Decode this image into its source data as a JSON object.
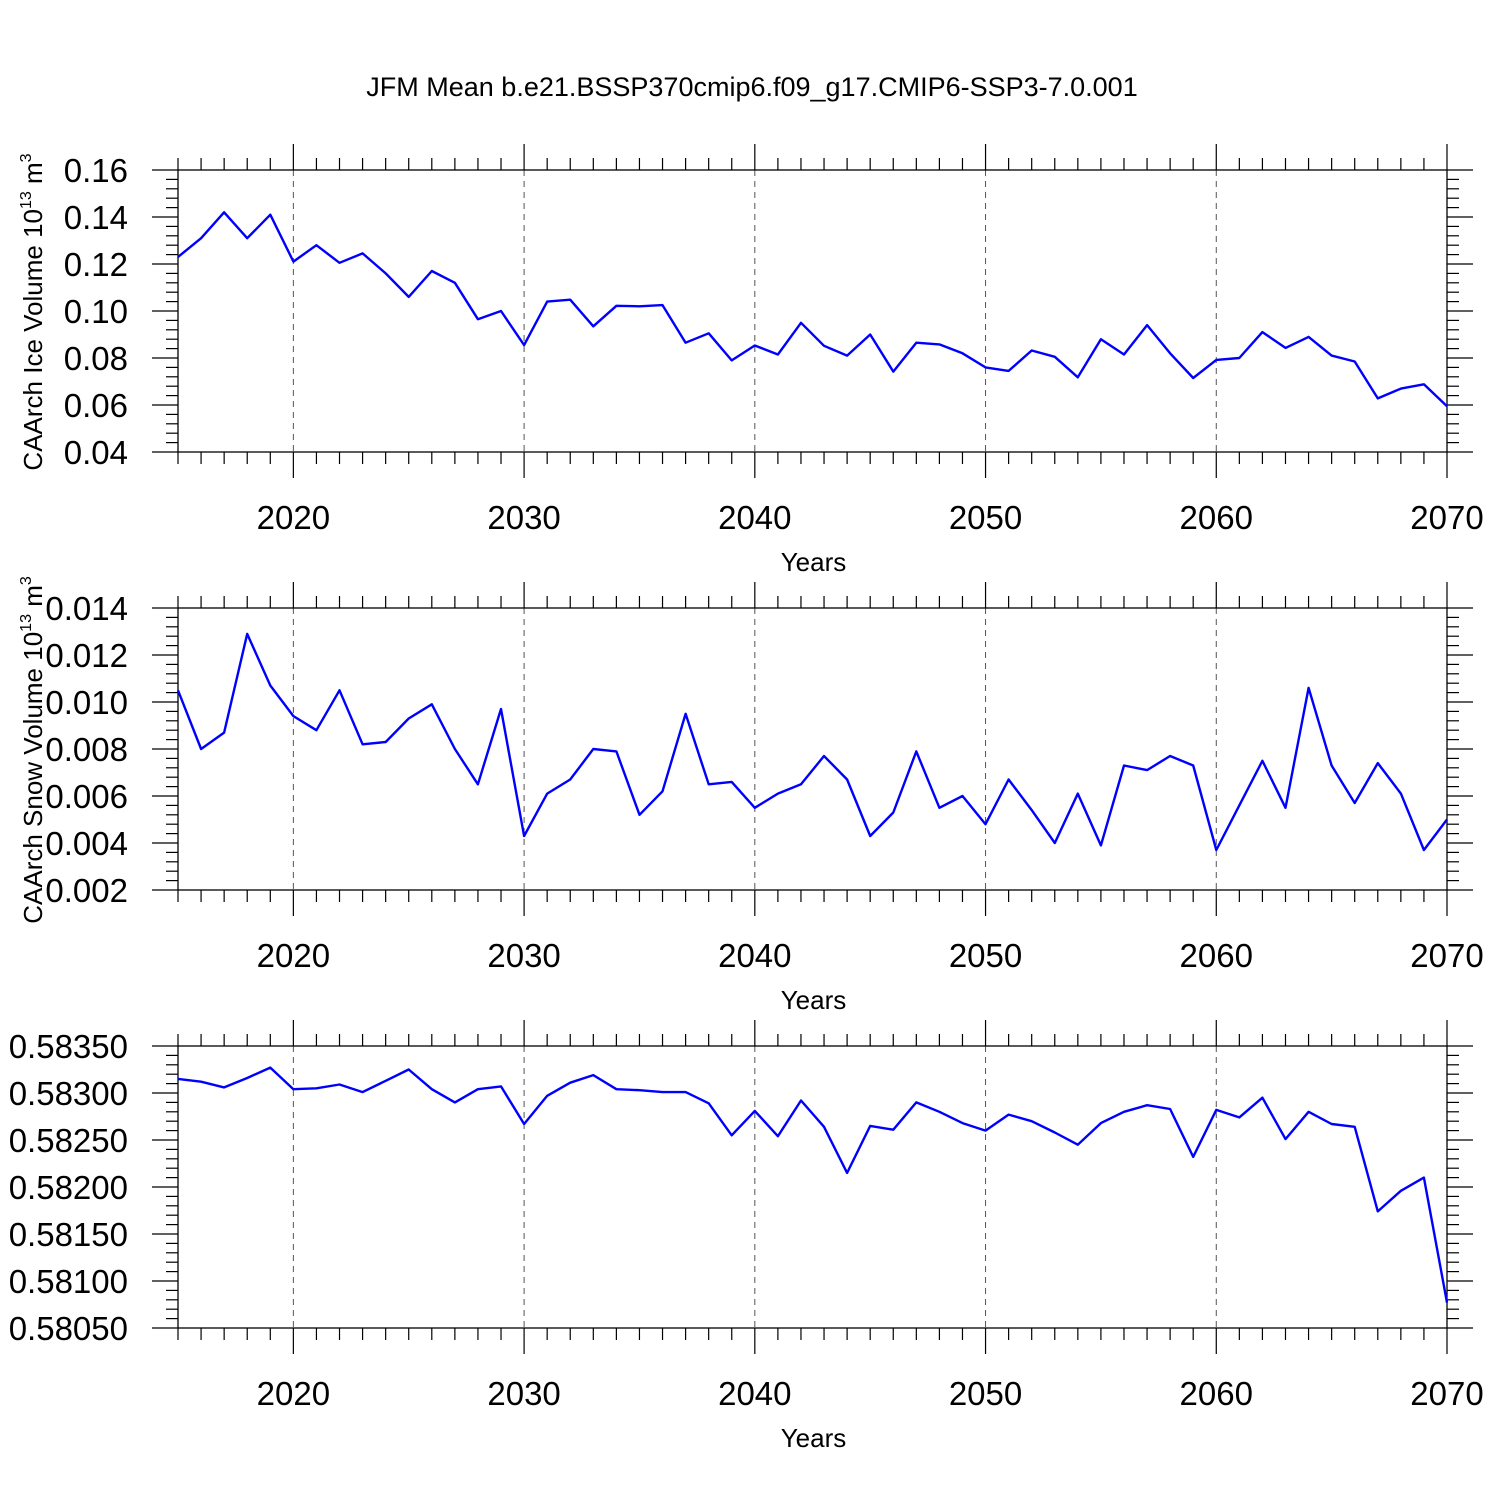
{
  "title": "JFM Mean b.e21.BSSP370cmip6.f09_g17.CMIP6-SSP3-7.0.001",
  "colors": {
    "line": "#0000ff",
    "axis": "#000000",
    "grid": "#555555"
  },
  "chart_data": [
    {
      "type": "line",
      "ylabel": "CAArch Ice Volume 10",
      "ylabel_exp": "13",
      "ylabel_unit": " m",
      "ylabel_unit_exp": "3",
      "xlabel": "Years",
      "xlim": [
        2015,
        2070
      ],
      "ylim": [
        0.04,
        0.16
      ],
      "xticks": [
        2020,
        2030,
        2040,
        2050,
        2060,
        2070
      ],
      "xtick_labels": [
        "2020",
        "2030",
        "2040",
        "2050",
        "2060",
        "2070"
      ],
      "yticks": [
        0.04,
        0.06,
        0.08,
        0.1,
        0.12,
        0.14,
        0.16
      ],
      "ytick_labels": [
        "0.04",
        "0.06",
        "0.08",
        "0.10",
        "0.12",
        "0.14",
        "0.16"
      ],
      "grid": "vertical dashed at major x ticks",
      "x": [
        2015,
        2016,
        2017,
        2018,
        2019,
        2020,
        2021,
        2022,
        2023,
        2024,
        2025,
        2026,
        2027,
        2028,
        2029,
        2030,
        2031,
        2032,
        2033,
        2034,
        2035,
        2036,
        2037,
        2038,
        2039,
        2040,
        2041,
        2042,
        2043,
        2044,
        2045,
        2046,
        2047,
        2048,
        2049,
        2050,
        2051,
        2052,
        2053,
        2054,
        2055,
        2056,
        2057,
        2058,
        2059,
        2060,
        2061,
        2062,
        2063,
        2064,
        2065,
        2066,
        2067,
        2068,
        2069,
        2070
      ],
      "y": [
        0.123,
        0.131,
        0.142,
        0.131,
        0.141,
        0.121,
        0.128,
        0.1205,
        0.1245,
        0.116,
        0.106,
        0.117,
        0.112,
        0.0965,
        0.1,
        0.0855,
        0.104,
        0.1048,
        0.0935,
        0.1022,
        0.102,
        0.1025,
        0.0865,
        0.0905,
        0.079,
        0.0853,
        0.0815,
        0.095,
        0.0852,
        0.081,
        0.09,
        0.0742,
        0.0865,
        0.0858,
        0.082,
        0.076,
        0.0745,
        0.0832,
        0.0805,
        0.0718,
        0.088,
        0.0815,
        0.094,
        0.082,
        0.0715,
        0.0792,
        0.08,
        0.091,
        0.0843,
        0.089,
        0.081,
        0.0785,
        0.0628,
        0.067,
        0.0688,
        0.0595
      ]
    },
    {
      "type": "line",
      "ylabel": "CAArch Snow Volume 10",
      "ylabel_exp": "13",
      "ylabel_unit": " m",
      "ylabel_unit_exp": "3",
      "xlabel": "Years",
      "xlim": [
        2015,
        2070
      ],
      "ylim": [
        0.002,
        0.014
      ],
      "xticks": [
        2020,
        2030,
        2040,
        2050,
        2060,
        2070
      ],
      "xtick_labels": [
        "2020",
        "2030",
        "2040",
        "2050",
        "2060",
        "2070"
      ],
      "yticks": [
        0.002,
        0.004,
        0.006,
        0.008,
        0.01,
        0.012,
        0.014
      ],
      "ytick_labels": [
        "0.002",
        "0.004",
        "0.006",
        "0.008",
        "0.010",
        "0.012",
        "0.014"
      ],
      "grid": "vertical dashed at major x ticks",
      "x": [
        2015,
        2016,
        2017,
        2018,
        2019,
        2020,
        2021,
        2022,
        2023,
        2024,
        2025,
        2026,
        2027,
        2028,
        2029,
        2030,
        2031,
        2032,
        2033,
        2034,
        2035,
        2036,
        2037,
        2038,
        2039,
        2040,
        2041,
        2042,
        2043,
        2044,
        2045,
        2046,
        2047,
        2048,
        2049,
        2050,
        2051,
        2052,
        2053,
        2054,
        2055,
        2056,
        2057,
        2058,
        2059,
        2060,
        2061,
        2062,
        2063,
        2064,
        2065,
        2066,
        2067,
        2068,
        2069,
        2070
      ],
      "y": [
        0.0105,
        0.008,
        0.0087,
        0.0129,
        0.0107,
        0.0094,
        0.0088,
        0.0105,
        0.0082,
        0.0083,
        0.0093,
        0.0099,
        0.008,
        0.0065,
        0.0097,
        0.0043,
        0.0061,
        0.0067,
        0.008,
        0.0079,
        0.0052,
        0.0062,
        0.0095,
        0.0065,
        0.0066,
        0.0055,
        0.0061,
        0.0065,
        0.0077,
        0.0067,
        0.0043,
        0.0053,
        0.0079,
        0.0055,
        0.006,
        0.0048,
        0.0067,
        0.0054,
        0.004,
        0.0061,
        0.0039,
        0.0073,
        0.0071,
        0.0077,
        0.0073,
        0.0037,
        0.0056,
        0.0075,
        0.0055,
        0.0106,
        0.0073,
        0.0057,
        0.0074,
        0.0061,
        0.0037,
        0.005
      ]
    },
    {
      "type": "line",
      "ylabel": "",
      "xlabel": "Years",
      "xlim": [
        2015,
        2070
      ],
      "ylim": [
        0.5805,
        0.5835
      ],
      "xticks": [
        2020,
        2030,
        2040,
        2050,
        2060,
        2070
      ],
      "xtick_labels": [
        "2020",
        "2030",
        "2040",
        "2050",
        "2060",
        "2070"
      ],
      "yticks": [
        0.5805,
        0.581,
        0.5815,
        0.582,
        0.5825,
        0.583,
        0.5835
      ],
      "ytick_labels": [
        "0.58050",
        "0.58100",
        "0.58150",
        "0.58200",
        "0.58250",
        "0.58300",
        "0.58350"
      ],
      "grid": "vertical dashed at major x ticks",
      "x": [
        2015,
        2016,
        2017,
        2018,
        2019,
        2020,
        2021,
        2022,
        2023,
        2024,
        2025,
        2026,
        2027,
        2028,
        2029,
        2030,
        2031,
        2032,
        2033,
        2034,
        2035,
        2036,
        2037,
        2038,
        2039,
        2040,
        2041,
        2042,
        2043,
        2044,
        2045,
        2046,
        2047,
        2048,
        2049,
        2050,
        2051,
        2052,
        2053,
        2054,
        2055,
        2056,
        2057,
        2058,
        2059,
        2060,
        2061,
        2062,
        2063,
        2064,
        2065,
        2066,
        2067,
        2068,
        2069,
        2070
      ],
      "y": [
        0.58315,
        0.58312,
        0.58306,
        0.58316,
        0.58327,
        0.58304,
        0.58305,
        0.58309,
        0.58301,
        0.58313,
        0.58325,
        0.58304,
        0.5829,
        0.58304,
        0.58307,
        0.58267,
        0.58297,
        0.58311,
        0.58319,
        0.58304,
        0.58303,
        0.58301,
        0.58301,
        0.58289,
        0.58255,
        0.58281,
        0.58254,
        0.58292,
        0.58264,
        0.58215,
        0.58265,
        0.58261,
        0.5829,
        0.5828,
        0.58268,
        0.5826,
        0.58277,
        0.5827,
        0.58258,
        0.58245,
        0.58268,
        0.5828,
        0.58287,
        0.58283,
        0.58232,
        0.58282,
        0.58274,
        0.58295,
        0.58251,
        0.5828,
        0.58267,
        0.58264,
        0.58174,
        0.58196,
        0.5821,
        0.58077
      ]
    }
  ]
}
